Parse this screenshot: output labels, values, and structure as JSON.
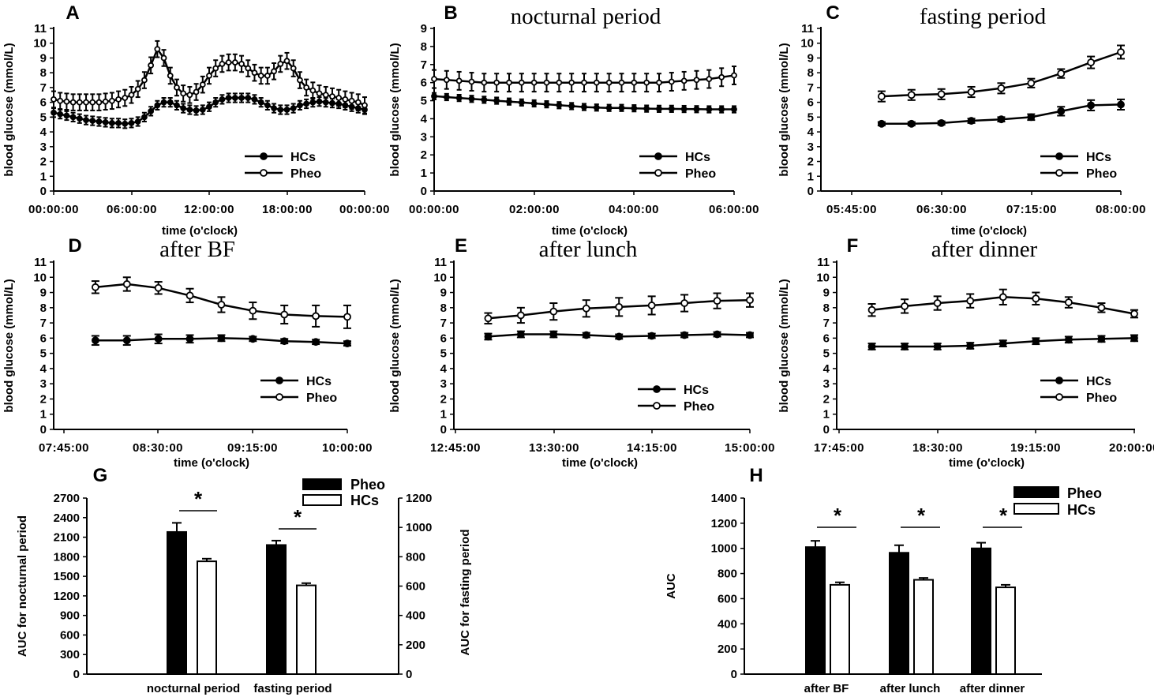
{
  "chart_data": [
    {
      "panel": "A",
      "type": "line",
      "title": "",
      "xlabel": "time (o'clock)",
      "ylabel": "blood glucose (mmol/L)",
      "ylim": [
        0,
        11
      ],
      "yticks": [
        0,
        1,
        2,
        3,
        4,
        5,
        6,
        7,
        8,
        9,
        10,
        11
      ],
      "xticklabels": [
        "00:00:00",
        "06:00:00",
        "12:00:00",
        "18:00:00",
        "00:00:00"
      ],
      "xlim": [
        0,
        24
      ],
      "series": [
        {
          "name": "HCs",
          "marker": "filled",
          "x": [
            0,
            0.5,
            1,
            1.5,
            2,
            2.5,
            3,
            3.5,
            4,
            4.5,
            5,
            5.5,
            6,
            6.5,
            7,
            7.5,
            8,
            8.5,
            9,
            9.5,
            10,
            10.5,
            11,
            11.5,
            12,
            12.5,
            13,
            13.5,
            14,
            14.5,
            15,
            15.5,
            16,
            16.5,
            17,
            17.5,
            18,
            18.5,
            19,
            19.5,
            20,
            20.5,
            21,
            21.5,
            22,
            22.5,
            23,
            23.5,
            24
          ],
          "values": [
            5.3,
            5.2,
            5.1,
            5.0,
            4.9,
            4.8,
            4.75,
            4.7,
            4.65,
            4.6,
            4.6,
            4.55,
            4.6,
            4.7,
            5.0,
            5.4,
            5.8,
            6.0,
            6.0,
            5.8,
            5.6,
            5.5,
            5.45,
            5.5,
            5.7,
            6.0,
            6.2,
            6.3,
            6.3,
            6.3,
            6.3,
            6.2,
            6.0,
            5.8,
            5.6,
            5.5,
            5.5,
            5.6,
            5.8,
            5.9,
            6.0,
            6.05,
            6.0,
            5.95,
            5.9,
            5.8,
            5.7,
            5.6,
            5.5
          ],
          "err": 0.3
        },
        {
          "name": "Pheo",
          "marker": "open",
          "x": [
            0,
            0.5,
            1,
            1.5,
            2,
            2.5,
            3,
            3.5,
            4,
            4.5,
            5,
            5.5,
            6,
            6.5,
            7,
            7.5,
            8,
            8.5,
            9,
            9.5,
            10,
            10.5,
            11,
            11.5,
            12,
            12.5,
            13,
            13.5,
            14,
            14.5,
            15,
            15.5,
            16,
            16.5,
            17,
            17.5,
            18,
            18.5,
            19,
            19.5,
            20,
            20.5,
            21,
            21.5,
            22,
            22.5,
            23,
            23.5,
            24
          ],
          "values": [
            6.2,
            6.1,
            6.05,
            6.0,
            6.0,
            6.0,
            6.0,
            6.0,
            6.05,
            6.1,
            6.2,
            6.3,
            6.5,
            6.9,
            7.5,
            8.5,
            9.6,
            9.0,
            7.8,
            7.0,
            6.6,
            6.5,
            6.7,
            7.2,
            7.8,
            8.3,
            8.6,
            8.7,
            8.7,
            8.6,
            8.3,
            8.0,
            7.8,
            7.8,
            8.1,
            8.6,
            8.8,
            8.3,
            7.5,
            7.0,
            6.8,
            6.6,
            6.5,
            6.4,
            6.3,
            6.2,
            6.1,
            6.0,
            5.8
          ],
          "err": 0.55
        }
      ]
    },
    {
      "panel": "B",
      "type": "line",
      "title": "nocturnal period",
      "xlabel": "time (o'clock)",
      "ylabel": "blood glucose (mmol/L)",
      "ylim": [
        0,
        9
      ],
      "yticks": [
        0,
        1,
        2,
        3,
        4,
        5,
        6,
        7,
        8,
        9
      ],
      "xticklabels": [
        "00:00:00",
        "02:00:00",
        "04:00:00",
        "06:00:00"
      ],
      "xlim": [
        0,
        6
      ],
      "series": [
        {
          "name": "HCs",
          "marker": "filled",
          "x": [
            0,
            0.25,
            0.5,
            0.75,
            1,
            1.25,
            1.5,
            1.75,
            2,
            2.25,
            2.5,
            2.75,
            3,
            3.25,
            3.5,
            3.75,
            4,
            4.25,
            4.5,
            4.75,
            5,
            5.25,
            5.5,
            5.75,
            6
          ],
          "values": [
            5.25,
            5.2,
            5.15,
            5.1,
            5.05,
            5.0,
            4.95,
            4.9,
            4.85,
            4.8,
            4.75,
            4.7,
            4.65,
            4.62,
            4.6,
            4.6,
            4.58,
            4.56,
            4.55,
            4.55,
            4.54,
            4.53,
            4.52,
            4.52,
            4.52
          ],
          "err": 0.18
        },
        {
          "name": "Pheo",
          "marker": "open",
          "x": [
            0,
            0.25,
            0.5,
            0.75,
            1,
            1.25,
            1.5,
            1.75,
            2,
            2.25,
            2.5,
            2.75,
            3,
            3.25,
            3.5,
            3.75,
            4,
            4.25,
            4.5,
            4.75,
            5,
            5.25,
            5.5,
            5.75,
            6
          ],
          "values": [
            6.2,
            6.15,
            6.1,
            6.05,
            6.0,
            6.0,
            6.0,
            6.0,
            6.0,
            6.0,
            6.0,
            6.0,
            6.0,
            6.0,
            6.0,
            6.0,
            6.0,
            6.0,
            6.0,
            6.05,
            6.1,
            6.15,
            6.2,
            6.3,
            6.4
          ],
          "err": 0.5
        }
      ]
    },
    {
      "panel": "C",
      "type": "line",
      "title": "fasting period",
      "xlabel": "time (o'clock)",
      "ylabel": "blood glucose (mmol/L)",
      "ylim": [
        0,
        11
      ],
      "yticks": [
        0,
        1,
        2,
        3,
        4,
        5,
        6,
        7,
        8,
        9,
        10,
        11
      ],
      "xticklabels": [
        "05:45:00",
        "06:30:00",
        "07:15:00",
        "08:00:00"
      ],
      "xlim": [
        0,
        135
      ],
      "series": [
        {
          "name": "HCs",
          "marker": "filled",
          "x": [
            15,
            30,
            45,
            60,
            75,
            90,
            105,
            120,
            135
          ],
          "values": [
            4.55,
            4.55,
            4.6,
            4.75,
            4.85,
            5.0,
            5.4,
            5.8,
            5.85
          ],
          "err": [
            0.12,
            0.12,
            0.12,
            0.15,
            0.15,
            0.2,
            0.3,
            0.35,
            0.35
          ]
        },
        {
          "name": "Pheo",
          "marker": "open",
          "x": [
            15,
            30,
            45,
            60,
            75,
            90,
            105,
            120,
            135
          ],
          "values": [
            6.4,
            6.5,
            6.55,
            6.7,
            6.95,
            7.3,
            7.95,
            8.7,
            9.4
          ],
          "err": [
            0.35,
            0.35,
            0.35,
            0.35,
            0.35,
            0.3,
            0.3,
            0.4,
            0.45
          ]
        }
      ]
    },
    {
      "panel": "D",
      "type": "line",
      "title": "after BF",
      "xlabel": "time (o'clock)",
      "ylabel": "blood glucose (mmol/L)",
      "ylim": [
        0,
        11
      ],
      "yticks": [
        0,
        1,
        2,
        3,
        4,
        5,
        6,
        7,
        8,
        9,
        10,
        11
      ],
      "xticklabels": [
        "07:45:00",
        "08:30:00",
        "09:15:00",
        "10:00:00"
      ],
      "xlim": [
        0,
        135
      ],
      "series": [
        {
          "name": "HCs",
          "marker": "filled",
          "x": [
            15,
            30,
            45,
            60,
            75,
            90,
            105,
            120,
            135
          ],
          "values": [
            5.85,
            5.85,
            5.95,
            5.95,
            6.0,
            5.95,
            5.8,
            5.75,
            5.65
          ],
          "err": [
            0.3,
            0.3,
            0.3,
            0.25,
            0.2,
            0.15,
            0.15,
            0.15,
            0.15
          ]
        },
        {
          "name": "Pheo",
          "marker": "open",
          "x": [
            15,
            30,
            45,
            60,
            75,
            90,
            105,
            120,
            135
          ],
          "values": [
            9.35,
            9.55,
            9.3,
            8.8,
            8.2,
            7.8,
            7.55,
            7.45,
            7.4
          ],
          "err": [
            0.4,
            0.45,
            0.4,
            0.45,
            0.5,
            0.55,
            0.6,
            0.7,
            0.75
          ]
        }
      ]
    },
    {
      "panel": "E",
      "type": "line",
      "title": "after lunch",
      "xlabel": "time (o'clock)",
      "ylabel": "blood glucose (mmol/L)",
      "ylim": [
        0,
        11
      ],
      "yticks": [
        0,
        1,
        2,
        3,
        4,
        5,
        6,
        7,
        8,
        9,
        10,
        11
      ],
      "xticklabels": [
        "12:45:00",
        "13:30:00",
        "14:15:00",
        "15:00:00"
      ],
      "xlim": [
        0,
        135
      ],
      "series": [
        {
          "name": "HCs",
          "marker": "filled",
          "x": [
            15,
            30,
            45,
            60,
            75,
            90,
            105,
            120,
            135
          ],
          "values": [
            6.1,
            6.25,
            6.25,
            6.2,
            6.1,
            6.15,
            6.2,
            6.25,
            6.2
          ],
          "err": [
            0.2,
            0.2,
            0.2,
            0.15,
            0.15,
            0.15,
            0.15,
            0.15,
            0.15
          ]
        },
        {
          "name": "Pheo",
          "marker": "open",
          "x": [
            15,
            30,
            45,
            60,
            75,
            90,
            105,
            120,
            135
          ],
          "values": [
            7.3,
            7.5,
            7.75,
            7.95,
            8.05,
            8.15,
            8.3,
            8.45,
            8.5
          ],
          "err": [
            0.35,
            0.5,
            0.55,
            0.55,
            0.6,
            0.6,
            0.55,
            0.5,
            0.45
          ]
        }
      ]
    },
    {
      "panel": "F",
      "type": "line",
      "title": "after dinner",
      "xlabel": "time (o'clock)",
      "ylabel": "blood glucose (mmol/L)",
      "ylim": [
        0,
        11
      ],
      "yticks": [
        0,
        1,
        2,
        3,
        4,
        5,
        6,
        7,
        8,
        9,
        10,
        11
      ],
      "xticklabels": [
        "17:45:00",
        "18:30:00",
        "19:15:00",
        "20:00:00"
      ],
      "xlim": [
        0,
        135
      ],
      "series": [
        {
          "name": "HCs",
          "marker": "filled",
          "x": [
            15,
            30,
            45,
            60,
            75,
            90,
            105,
            120,
            135
          ],
          "values": [
            5.45,
            5.45,
            5.45,
            5.5,
            5.65,
            5.8,
            5.9,
            5.95,
            6.0
          ],
          "err": [
            0.2,
            0.2,
            0.2,
            0.2,
            0.2,
            0.2,
            0.2,
            0.2,
            0.2
          ]
        },
        {
          "name": "Pheo",
          "marker": "open",
          "x": [
            15,
            30,
            45,
            60,
            75,
            90,
            105,
            120,
            135
          ],
          "values": [
            7.85,
            8.1,
            8.3,
            8.45,
            8.7,
            8.6,
            8.35,
            8.0,
            7.6
          ],
          "err": [
            0.4,
            0.45,
            0.45,
            0.45,
            0.5,
            0.4,
            0.35,
            0.3,
            0.25
          ]
        }
      ]
    },
    {
      "panel": "G",
      "type": "bar",
      "categories": [
        "nocturnal period",
        "fasting period"
      ],
      "ylabel": "AUC for nocturnal period",
      "y2label": "AUC for fasting period",
      "ylim": [
        0,
        2700
      ],
      "yticks": [
        0,
        300,
        600,
        900,
        1200,
        1500,
        1800,
        2100,
        2400,
        2700
      ],
      "y2lim": [
        0,
        1200
      ],
      "y2ticks": [
        0,
        200,
        400,
        600,
        800,
        1000,
        1200
      ],
      "series": [
        {
          "name": "Pheo",
          "fill": "#000000",
          "values": [
            2180,
            880
          ],
          "err": [
            140,
            30
          ],
          "axis": [
            "left",
            "right"
          ]
        },
        {
          "name": "HCs",
          "fill": "#ffffff",
          "values": [
            1730,
            605
          ],
          "err": [
            40,
            15
          ],
          "axis": [
            "left",
            "right"
          ]
        }
      ],
      "significance": [
        "*",
        "*"
      ]
    },
    {
      "panel": "H",
      "type": "bar",
      "categories": [
        "after BF",
        "after lunch",
        "after dinner"
      ],
      "ylabel": "AUC",
      "ylim": [
        0,
        1400
      ],
      "yticks": [
        0,
        200,
        400,
        600,
        800,
        1000,
        1200,
        1400
      ],
      "series": [
        {
          "name": "Pheo",
          "fill": "#000000",
          "values": [
            1010,
            965,
            1000
          ],
          "err": [
            50,
            60,
            45
          ]
        },
        {
          "name": "HCs",
          "fill": "#ffffff",
          "values": [
            710,
            750,
            690
          ],
          "err": [
            20,
            15,
            20
          ]
        }
      ],
      "significance": [
        "*",
        "*",
        "*"
      ]
    }
  ],
  "panel_letters": {
    "A": "A",
    "B": "B",
    "C": "C",
    "D": "D",
    "E": "E",
    "F": "F",
    "G": "G",
    "H": "H"
  }
}
